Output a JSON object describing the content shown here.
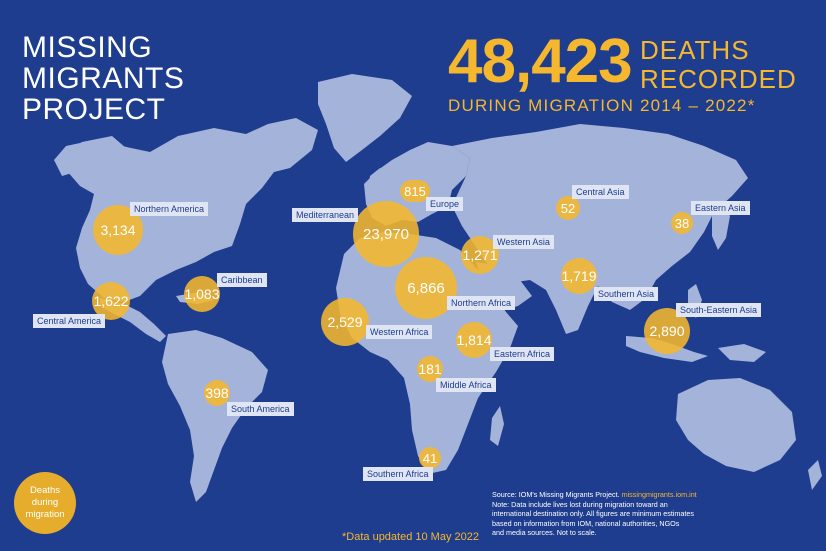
{
  "title_lines": [
    "MISSING",
    "MIGRANTS",
    "PROJECT"
  ],
  "headline": {
    "number": "48,423",
    "word1": "DEATHS",
    "word2": "RECORDED",
    "subtitle": "DURING MIGRATION 2014 – 2022*"
  },
  "regions": [
    {
      "id": "northern-america",
      "value": "3,134",
      "label": "Northern America"
    },
    {
      "id": "central-america",
      "value": "1,622",
      "label": "Central America"
    },
    {
      "id": "caribbean",
      "value": "1,083",
      "label": "Caribbean"
    },
    {
      "id": "south-america",
      "value": "398",
      "label": "South America"
    },
    {
      "id": "europe",
      "value": "815",
      "label": "Europe"
    },
    {
      "id": "mediterranean",
      "value": "23,970",
      "label": "Mediterranean"
    },
    {
      "id": "northern-africa",
      "value": "6,866",
      "label": "Northern Africa"
    },
    {
      "id": "western-africa",
      "value": "2,529",
      "label": "Western Africa"
    },
    {
      "id": "middle-africa",
      "value": "181",
      "label": "Middle Africa"
    },
    {
      "id": "eastern-africa",
      "value": "1,814",
      "label": "Eastern Africa"
    },
    {
      "id": "southern-africa",
      "value": "41",
      "label": "Southern Africa"
    },
    {
      "id": "western-asia",
      "value": "1,271",
      "label": "Western Asia"
    },
    {
      "id": "central-asia",
      "value": "52",
      "label": "Central Asia"
    },
    {
      "id": "southern-asia",
      "value": "1,719",
      "label": "Southern Asia"
    },
    {
      "id": "eastern-asia",
      "value": "38",
      "label": "Eastern Asia"
    },
    {
      "id": "south-eastern-asia",
      "value": "2,890",
      "label": "South-Eastern Asia"
    }
  ],
  "legend": {
    "lines": [
      "Deaths",
      "during",
      "migration"
    ]
  },
  "footnote": "*Data updated 10 May 2022",
  "source": {
    "prefix": "Source: IOM's Missing Migrants Project. ",
    "url": "missingmigrants.iom.int",
    "lines": [
      "Note: Data  include  lives lost during  migration toward an",
      "international destination only. All figures are minimum estimates",
      "based  on  information  from  IOM,  national  authorities,  NGOs",
      "and media sources. Not to scale."
    ]
  },
  "colors": {
    "background": "#1f3d8e",
    "land": "#a3b3d9",
    "accent": "#f5b72e",
    "label_bg": "#dfe5f3"
  }
}
